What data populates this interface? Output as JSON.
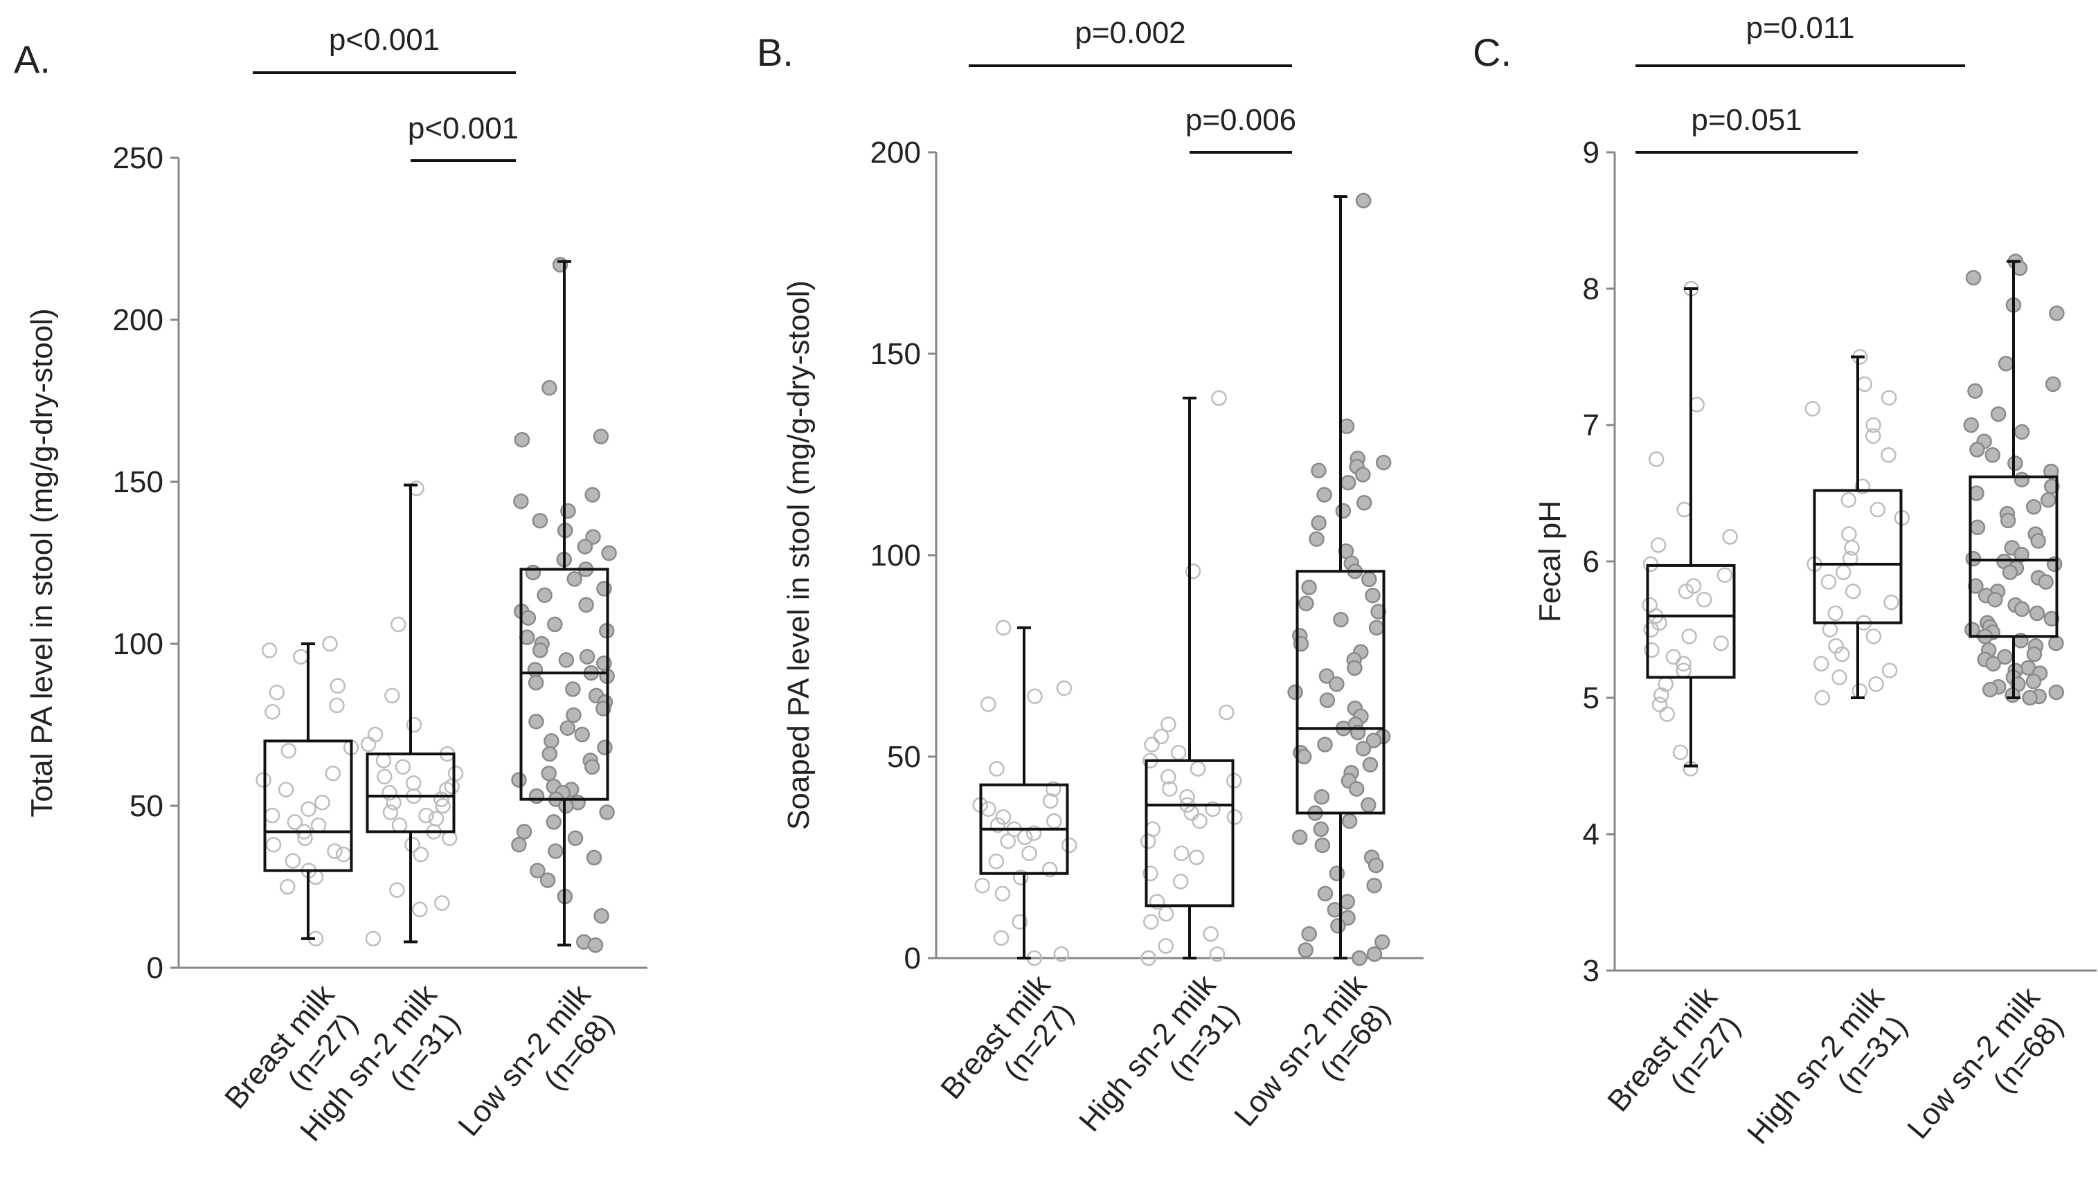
{
  "colors": {
    "axis": "#888888",
    "box": "#111111",
    "open_point_stroke": "#bdbdbd",
    "filled_point_fill": "#b8b8b8",
    "filled_point_stroke": "#8a8a8a"
  },
  "chart_data": [
    {
      "type": "box",
      "panel": "A.",
      "ylabel": "Total PA level in stool (mg/g-dry-stool)",
      "ylim": [
        0,
        250
      ],
      "yticks": [
        0,
        50,
        100,
        150,
        200,
        250
      ],
      "categories": [
        {
          "line1": "Breast milk",
          "line2": "(n=27)"
        },
        {
          "line1": "High sn-2 milk",
          "line2": "(n=31)"
        },
        {
          "line1": "Low sn-2 milk",
          "line2": "(n=68)"
        }
      ],
      "boxes": [
        {
          "min": 9,
          "q1": 30,
          "median": 42,
          "q3": 70,
          "max": 100
        },
        {
          "min": 8,
          "q1": 42,
          "median": 53,
          "q3": 66,
          "max": 149
        },
        {
          "min": 7,
          "q1": 52,
          "median": 91,
          "q3": 123,
          "max": 218
        }
      ],
      "points": [
        [
          100,
          98,
          96,
          87,
          85,
          81,
          79,
          68,
          67,
          60,
          58,
          55,
          51,
          49,
          47,
          45,
          44,
          42,
          40,
          38,
          36,
          35,
          33,
          30,
          28,
          25,
          9
        ],
        [
          148,
          106,
          84,
          75,
          72,
          69,
          66,
          64,
          62,
          60,
          59,
          57,
          56,
          55,
          54,
          53,
          52,
          51,
          50,
          48,
          46,
          44,
          42,
          40,
          38,
          35,
          24,
          20,
          18,
          9,
          47
        ],
        [
          217,
          179,
          164,
          163,
          146,
          144,
          141,
          138,
          135,
          133,
          130,
          128,
          126,
          123,
          122,
          120,
          117,
          115,
          112,
          110,
          108,
          106,
          104,
          102,
          100,
          98,
          96,
          95,
          94,
          92,
          91,
          90,
          88,
          86,
          84,
          82,
          80,
          78,
          76,
          74,
          72,
          70,
          68,
          66,
          64,
          62,
          60,
          58,
          56,
          55,
          54,
          53,
          52,
          51,
          50,
          48,
          45,
          42,
          40,
          38,
          36,
          34,
          30,
          27,
          22,
          16,
          8,
          7
        ]
      ],
      "point_style": [
        "open",
        "open",
        "filled"
      ],
      "comparisons": [
        {
          "label": "p<0.001",
          "from": 0,
          "to": 2,
          "level": 1
        },
        {
          "label": "p<0.001",
          "from": 1,
          "to": 2,
          "level": 0
        }
      ]
    },
    {
      "type": "box",
      "panel": "B.",
      "ylabel": "Soaped PA level in stool (mg/g-dry-stool)",
      "ylim": [
        0,
        200
      ],
      "yticks": [
        0,
        50,
        100,
        150,
        200
      ],
      "categories": [
        {
          "line1": "Breast milk",
          "line2": "(n=27)"
        },
        {
          "line1": "High sn-2 milk",
          "line2": "(n=31)"
        },
        {
          "line1": "Low sn-2 milk",
          "line2": "(n=68)"
        }
      ],
      "boxes": [
        {
          "min": 0,
          "q1": 21,
          "median": 32,
          "q3": 43,
          "max": 82
        },
        {
          "min": 0,
          "q1": 13,
          "median": 38,
          "q3": 49,
          "max": 139
        },
        {
          "min": 0,
          "q1": 36,
          "median": 57,
          "q3": 96,
          "max": 189
        }
      ],
      "points": [
        [
          82,
          67,
          65,
          63,
          47,
          42,
          39,
          38,
          37,
          35,
          34,
          33,
          32,
          31,
          30,
          29,
          28,
          26,
          24,
          22,
          20,
          18,
          16,
          9,
          5,
          1,
          0
        ],
        [
          139,
          96,
          61,
          58,
          55,
          53,
          51,
          49,
          47,
          45,
          44,
          42,
          40,
          38,
          37,
          36,
          35,
          34,
          32,
          29,
          25,
          21,
          19,
          14,
          11,
          9,
          6,
          3,
          1,
          0,
          26
        ],
        [
          188,
          132,
          124,
          123,
          122,
          121,
          120,
          118,
          115,
          113,
          111,
          108,
          104,
          101,
          98,
          96,
          94,
          92,
          90,
          88,
          86,
          84,
          82,
          80,
          78,
          76,
          74,
          72,
          70,
          68,
          66,
          64,
          62,
          60,
          58,
          57,
          56,
          55,
          54,
          53,
          52,
          51,
          50,
          48,
          46,
          44,
          42,
          40,
          38,
          36,
          34,
          32,
          30,
          28,
          25,
          23,
          21,
          18,
          16,
          14,
          12,
          10,
          8,
          6,
          4,
          2,
          1,
          0
        ]
      ],
      "point_style": [
        "open",
        "open",
        "filled"
      ],
      "comparisons": [
        {
          "label": "p=0.002",
          "from": 0,
          "to": 2,
          "level": 1
        },
        {
          "label": "p=0.006",
          "from": 1,
          "to": 2,
          "level": 0
        }
      ]
    },
    {
      "type": "box",
      "panel": "C.",
      "ylabel": "Fecal pH",
      "ylim": [
        3,
        9
      ],
      "yticks": [
        3,
        4,
        5,
        6,
        7,
        8,
        9
      ],
      "categories": [
        {
          "line1": "Breast milk",
          "line2": "(n=27)"
        },
        {
          "line1": "High sn-2 milk",
          "line2": "(n=31)"
        },
        {
          "line1": "Low sn-2 milk",
          "line2": "(n=68)"
        }
      ],
      "boxes": [
        {
          "min": 4.5,
          "q1": 5.15,
          "median": 5.6,
          "q3": 5.97,
          "max": 8.0
        },
        {
          "min": 5.0,
          "q1": 5.55,
          "median": 5.98,
          "q3": 6.52,
          "max": 7.5
        },
        {
          "min": 5.0,
          "q1": 5.45,
          "median": 6.01,
          "q3": 6.62,
          "max": 8.2
        }
      ],
      "points": [
        [
          8.0,
          7.15,
          6.75,
          6.38,
          6.18,
          6.12,
          5.98,
          5.9,
          5.82,
          5.78,
          5.72,
          5.68,
          5.6,
          5.55,
          5.5,
          5.45,
          5.4,
          5.35,
          5.3,
          5.25,
          5.2,
          5.1,
          5.02,
          4.95,
          4.88,
          4.6,
          4.48
        ],
        [
          7.5,
          7.3,
          7.2,
          7.12,
          7.0,
          6.92,
          6.78,
          6.55,
          6.45,
          6.38,
          6.32,
          6.2,
          6.1,
          6.02,
          5.98,
          5.92,
          5.85,
          5.78,
          5.7,
          5.62,
          5.55,
          5.5,
          5.45,
          5.38,
          5.32,
          5.25,
          5.2,
          5.15,
          5.1,
          5.05,
          5.0
        ],
        [
          8.2,
          8.15,
          8.08,
          7.88,
          7.82,
          7.45,
          7.3,
          7.25,
          7.08,
          7.0,
          6.95,
          6.88,
          6.82,
          6.78,
          6.72,
          6.66,
          6.6,
          6.55,
          6.5,
          6.45,
          6.4,
          6.35,
          6.3,
          6.25,
          6.2,
          6.15,
          6.1,
          6.05,
          6.02,
          6.0,
          5.98,
          5.95,
          5.92,
          5.88,
          5.85,
          5.82,
          5.78,
          5.75,
          5.72,
          5.68,
          5.65,
          5.62,
          5.58,
          5.55,
          5.52,
          5.5,
          5.48,
          5.45,
          5.42,
          5.4,
          5.38,
          5.35,
          5.32,
          5.3,
          5.28,
          5.25,
          5.22,
          5.2,
          5.18,
          5.15,
          5.12,
          5.1,
          5.08,
          5.06,
          5.04,
          5.02,
          5.01,
          5.0
        ]
      ],
      "point_style": [
        "open",
        "open",
        "filled"
      ],
      "comparisons": [
        {
          "label": "p=0.011",
          "from": 0,
          "to": 2,
          "level": 1
        },
        {
          "label": "p=0.051",
          "from": 0,
          "to": 1,
          "level": 0
        }
      ]
    }
  ]
}
